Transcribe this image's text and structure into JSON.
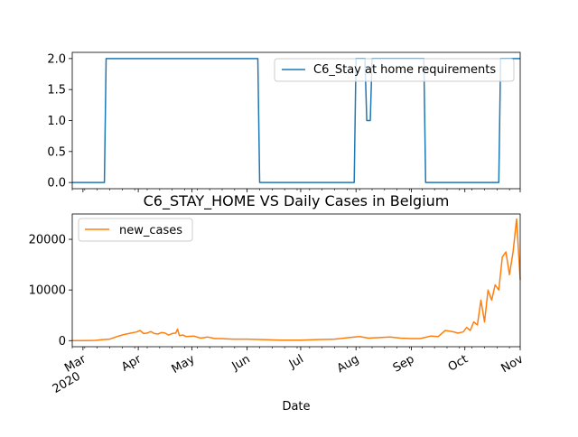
{
  "chart_data": [
    {
      "type": "line",
      "title": "",
      "xlabel": "",
      "ylabel": "",
      "ylim": [
        -0.1,
        2.1
      ],
      "yticks": [
        "0.0",
        "0.5",
        "1.0",
        "1.5",
        "2.0"
      ],
      "legend": "top-right",
      "series": [
        {
          "name": "C6_Stay at home requirements",
          "color": "#1f77b4",
          "x": [
            "2020-02-24",
            "2020-03-13",
            "2020-03-14",
            "2020-06-07",
            "2020-06-08",
            "2020-07-31",
            "2020-08-01",
            "2020-08-06",
            "2020-08-07",
            "2020-08-09",
            "2020-08-10",
            "2020-09-08",
            "2020-09-09",
            "2020-10-20",
            "2020-10-21",
            "2020-11-01"
          ],
          "values": [
            0,
            0,
            2,
            2,
            0,
            0,
            2,
            2,
            1,
            1,
            2,
            2,
            0,
            0,
            2,
            2
          ]
        }
      ]
    },
    {
      "type": "line",
      "title": "C6_STAY_HOME VS Daily Cases in Belgium",
      "xlabel": "Date",
      "ylabel": "",
      "ylim": [
        -1200,
        25000
      ],
      "yticks": [
        "0",
        "10000",
        "20000"
      ],
      "legend": "top-left",
      "series": [
        {
          "name": "new_cases",
          "color": "#ff7f0e",
          "x": [
            "2020-02-24",
            "2020-03-01",
            "2020-03-08",
            "2020-03-12",
            "2020-03-16",
            "2020-03-20",
            "2020-03-24",
            "2020-03-28",
            "2020-03-31",
            "2020-04-02",
            "2020-04-04",
            "2020-04-06",
            "2020-04-08",
            "2020-04-10",
            "2020-04-12",
            "2020-04-14",
            "2020-04-16",
            "2020-04-18",
            "2020-04-20",
            "2020-04-22",
            "2020-04-23",
            "2020-04-24",
            "2020-04-26",
            "2020-04-28",
            "2020-05-02",
            "2020-05-06",
            "2020-05-10",
            "2020-05-14",
            "2020-05-18",
            "2020-05-24",
            "2020-06-01",
            "2020-06-10",
            "2020-06-20",
            "2020-07-01",
            "2020-07-10",
            "2020-07-20",
            "2020-07-28",
            "2020-08-03",
            "2020-08-08",
            "2020-08-14",
            "2020-08-20",
            "2020-08-26",
            "2020-09-01",
            "2020-09-06",
            "2020-09-12",
            "2020-09-16",
            "2020-09-20",
            "2020-09-24",
            "2020-09-27",
            "2020-09-30",
            "2020-10-02",
            "2020-10-04",
            "2020-10-06",
            "2020-10-08",
            "2020-10-10",
            "2020-10-12",
            "2020-10-14",
            "2020-10-16",
            "2020-10-18",
            "2020-10-20",
            "2020-10-22",
            "2020-10-24",
            "2020-10-26",
            "2020-10-28",
            "2020-10-30",
            "2020-11-01"
          ],
          "values": [
            0,
            0,
            50,
            200,
            300,
            800,
            1200,
            1500,
            1700,
            2000,
            1400,
            1500,
            1800,
            1400,
            1300,
            1600,
            1500,
            1100,
            1400,
            1500,
            2300,
            1000,
            1100,
            800,
            900,
            500,
            700,
            400,
            400,
            300,
            300,
            200,
            100,
            100,
            200,
            300,
            600,
            800,
            500,
            600,
            700,
            500,
            400,
            400,
            900,
            800,
            2000,
            1800,
            1500,
            1700,
            2600,
            2000,
            3700,
            3100,
            8000,
            3700,
            10000,
            8000,
            11000,
            10000,
            16500,
            17500,
            13000,
            17500,
            24000,
            12000
          ]
        }
      ]
    }
  ],
  "shared_x_axis": {
    "ticks": [
      "Mar\n2020",
      "Apr",
      "May",
      "Jun",
      "Jul",
      "Aug",
      "Sep",
      "Oct",
      "Nov"
    ],
    "label": "Date"
  }
}
